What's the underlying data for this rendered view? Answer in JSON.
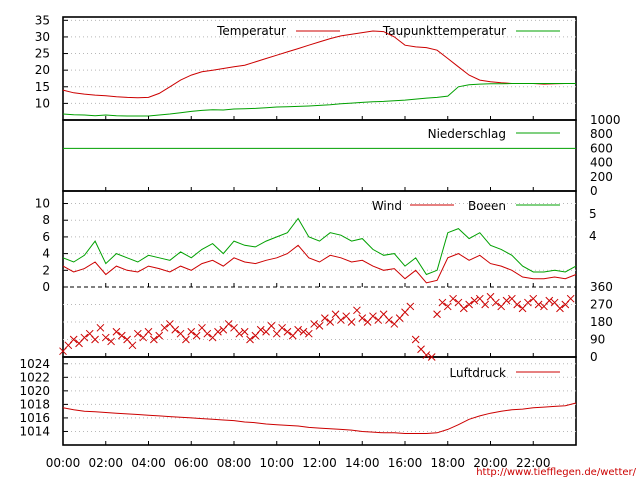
{
  "source_url": "http://www.tiefflegen.de/wetter/",
  "time_ticks": [
    "00:00",
    "02:00",
    "04:00",
    "06:00",
    "08:00",
    "10:00",
    "12:00",
    "14:00",
    "16:00",
    "18:00",
    "20:00",
    "22:00"
  ],
  "colors": {
    "red": "#cc0000",
    "green": "#00a000",
    "frame": "#000000",
    "grid": "#b8b8b8"
  },
  "chart_data": [
    {
      "type": "line",
      "panel": "temperature",
      "x_unit": "hour of day",
      "xlim": [
        0,
        24
      ],
      "ylim": [
        5,
        36
      ],
      "y_ticks": [
        10,
        15,
        20,
        25,
        30,
        35
      ],
      "grid": true,
      "legend_position": "top",
      "series": [
        {
          "name": "Temperatur",
          "color": "#cc0000",
          "x": [
            0,
            0.5,
            1,
            1.5,
            2,
            2.5,
            3,
            3.5,
            4,
            4.5,
            5,
            5.5,
            6,
            6.5,
            7,
            7.5,
            8,
            8.5,
            9,
            9.5,
            10,
            10.5,
            11,
            11.5,
            12,
            12.5,
            13,
            13.5,
            14,
            14.5,
            15,
            15.5,
            16,
            16.5,
            17,
            17.5,
            18,
            18.5,
            19,
            19.5,
            20,
            20.5,
            21,
            21.5,
            22,
            22.5,
            23,
            23.5,
            24
          ],
          "values": [
            14,
            13.2,
            12.8,
            12.5,
            12.3,
            12.0,
            11.8,
            11.7,
            11.8,
            13.0,
            15.0,
            17.0,
            18.5,
            19.5,
            20.0,
            20.5,
            21.0,
            21.5,
            22.5,
            23.5,
            24.5,
            25.5,
            26.5,
            27.5,
            28.5,
            29.5,
            30.3,
            30.8,
            31.3,
            31.8,
            31.6,
            30.0,
            27.5,
            27.0,
            26.8,
            26.0,
            23.5,
            21.0,
            18.5,
            17.0,
            16.5,
            16.2,
            16.0,
            16.0,
            16.0,
            15.8,
            15.9,
            16.0,
            16.0
          ]
        },
        {
          "name": "Taupunkttemperatur",
          "color": "#00a000",
          "x": [
            0,
            0.5,
            1,
            1.5,
            2,
            2.5,
            3,
            3.5,
            4,
            4.5,
            5,
            5.5,
            6,
            6.5,
            7,
            7.5,
            8,
            8.5,
            9,
            9.5,
            10,
            10.5,
            11,
            11.5,
            12,
            12.5,
            13,
            13.5,
            14,
            14.5,
            15,
            15.5,
            16,
            16.5,
            17,
            17.5,
            18,
            18.5,
            19,
            19.5,
            20,
            20.5,
            21,
            21.5,
            22,
            22.5,
            23,
            23.5,
            24
          ],
          "values": [
            6.8,
            6.6,
            6.5,
            6.3,
            6.5,
            6.3,
            6.2,
            6.2,
            6.2,
            6.5,
            6.8,
            7.2,
            7.6,
            7.9,
            8.1,
            8.0,
            8.3,
            8.4,
            8.5,
            8.7,
            8.9,
            9.0,
            9.1,
            9.2,
            9.4,
            9.6,
            9.9,
            10.1,
            10.3,
            10.5,
            10.6,
            10.8,
            11.0,
            11.3,
            11.6,
            11.8,
            12.2,
            15.0,
            15.6,
            15.8,
            15.9,
            15.9,
            16.0,
            16.0,
            16.0,
            16.0,
            16.0,
            16.0,
            16.0
          ]
        }
      ]
    },
    {
      "type": "line",
      "panel": "precipitation",
      "x_unit": "hour of day",
      "xlim": [
        0,
        24
      ],
      "ylim": [
        0,
        1000
      ],
      "y_ticks": [
        0,
        200,
        400,
        600,
        800,
        1000
      ],
      "grid": false,
      "legend_position": "top-right",
      "series": [
        {
          "name": "Niederschlag",
          "color": "#00a000",
          "x": [
            0,
            24
          ],
          "values": [
            600,
            600
          ]
        }
      ]
    },
    {
      "type": "line",
      "panel": "wind",
      "x_unit": "hour of day",
      "xlim": [
        0,
        24
      ],
      "ylim": [
        0,
        11.5
      ],
      "y_ticks": [
        0,
        2,
        4,
        6,
        8,
        10
      ],
      "y_ticks_right": [
        "4",
        "5"
      ],
      "grid": true,
      "legend_position": "top-right",
      "series": [
        {
          "name": "Wind",
          "color": "#cc0000",
          "x": [
            0,
            0.5,
            1,
            1.5,
            2,
            2.5,
            3,
            3.5,
            4,
            4.5,
            5,
            5.5,
            6,
            6.5,
            7,
            7.5,
            8,
            8.5,
            9,
            9.5,
            10,
            10.5,
            11,
            11.5,
            12,
            12.5,
            13,
            13.5,
            14,
            14.5,
            15,
            15.5,
            16,
            16.5,
            17,
            17.5,
            18,
            18.5,
            19,
            19.5,
            20,
            20.5,
            21,
            21.5,
            22,
            22.5,
            23,
            23.5,
            24
          ],
          "values": [
            2.5,
            1.8,
            2.2,
            3.0,
            1.5,
            2.5,
            2.0,
            1.8,
            2.5,
            2.2,
            1.8,
            2.5,
            2.0,
            2.8,
            3.2,
            2.5,
            3.5,
            3.0,
            2.8,
            3.2,
            3.5,
            4.0,
            5.0,
            3.5,
            3.0,
            3.8,
            3.5,
            3.0,
            3.2,
            2.5,
            2.0,
            2.2,
            1.0,
            2.0,
            0.5,
            0.8,
            3.5,
            4.0,
            3.2,
            3.8,
            2.8,
            2.5,
            2.0,
            1.2,
            1.0,
            1.0,
            1.2,
            1.0,
            1.5
          ]
        },
        {
          "name": "Boeen",
          "color": "#00a000",
          "x": [
            0,
            0.5,
            1,
            1.5,
            2,
            2.5,
            3,
            3.5,
            4,
            4.5,
            5,
            5.5,
            6,
            6.5,
            7,
            7.5,
            8,
            8.5,
            9,
            9.5,
            10,
            10.5,
            11,
            11.5,
            12,
            12.5,
            13,
            13.5,
            14,
            14.5,
            15,
            15.5,
            16,
            16.5,
            17,
            17.5,
            18,
            18.5,
            19,
            19.5,
            20,
            20.5,
            21,
            21.5,
            22,
            22.5,
            23,
            23.5,
            24
          ],
          "values": [
            3.5,
            3.0,
            3.8,
            5.5,
            2.8,
            4.0,
            3.5,
            3.0,
            3.8,
            3.5,
            3.2,
            4.2,
            3.5,
            4.5,
            5.2,
            4.0,
            5.5,
            5.0,
            4.8,
            5.5,
            6.0,
            6.5,
            8.2,
            6.0,
            5.5,
            6.5,
            6.2,
            5.5,
            5.8,
            4.5,
            3.8,
            4.0,
            2.5,
            3.5,
            1.5,
            2.0,
            6.5,
            7.0,
            5.8,
            6.5,
            5.0,
            4.5,
            3.8,
            2.5,
            1.8,
            1.8,
            2.0,
            1.8,
            2.5
          ]
        }
      ]
    },
    {
      "type": "scatter",
      "panel": "wind-direction",
      "x_unit": "hour of day",
      "xlim": [
        0,
        24
      ],
      "ylim": [
        0,
        360
      ],
      "y_ticks_right": [
        0,
        90,
        180,
        270,
        360
      ],
      "grid": true,
      "marker": "x",
      "series": [
        {
          "color": "#cc0000",
          "x": [
            0.0,
            0.25,
            0.5,
            0.75,
            1.0,
            1.25,
            1.5,
            1.75,
            2.0,
            2.25,
            2.5,
            2.75,
            3.0,
            3.25,
            3.5,
            3.75,
            4.0,
            4.25,
            4.5,
            4.75,
            5.0,
            5.25,
            5.5,
            5.75,
            6.0,
            6.25,
            6.5,
            6.75,
            7.0,
            7.25,
            7.5,
            7.75,
            8.0,
            8.25,
            8.5,
            8.75,
            9.0,
            9.25,
            9.5,
            9.75,
            10.0,
            10.25,
            10.5,
            10.75,
            11.0,
            11.25,
            11.5,
            11.75,
            12.0,
            12.25,
            12.5,
            12.75,
            13.0,
            13.25,
            13.5,
            13.75,
            14.0,
            14.25,
            14.5,
            14.75,
            15.0,
            15.25,
            15.5,
            15.75,
            16.0,
            16.25,
            16.5,
            16.75,
            17.0,
            17.25,
            17.5,
            17.75,
            18.0,
            18.25,
            18.5,
            18.75,
            19.0,
            19.25,
            19.5,
            19.75,
            20.0,
            20.25,
            20.5,
            20.75,
            21.0,
            21.25,
            21.5,
            21.75,
            22.0,
            22.25,
            22.5,
            22.75,
            23.0,
            23.25,
            23.5,
            23.75
          ],
          "values": [
            30,
            60,
            90,
            70,
            100,
            120,
            90,
            150,
            100,
            80,
            130,
            110,
            90,
            60,
            120,
            100,
            130,
            90,
            110,
            150,
            170,
            140,
            120,
            90,
            130,
            110,
            150,
            120,
            100,
            130,
            140,
            170,
            150,
            120,
            130,
            90,
            110,
            140,
            130,
            160,
            120,
            150,
            130,
            110,
            140,
            130,
            120,
            170,
            160,
            200,
            180,
            220,
            190,
            210,
            180,
            240,
            200,
            180,
            210,
            190,
            220,
            190,
            170,
            200,
            230,
            260,
            90,
            40,
            10,
            0,
            220,
            280,
            260,
            300,
            280,
            250,
            270,
            290,
            300,
            270,
            310,
            280,
            260,
            290,
            300,
            270,
            250,
            280,
            300,
            270,
            260,
            290,
            280,
            250,
            270,
            300
          ]
        }
      ]
    },
    {
      "type": "line",
      "panel": "pressure",
      "x_unit": "hour of day",
      "xlim": [
        0,
        24
      ],
      "ylim": [
        1012,
        1025
      ],
      "y_ticks": [
        1014,
        1016,
        1018,
        1020,
        1022,
        1024
      ],
      "grid": true,
      "legend_position": "top-right",
      "series": [
        {
          "name": "Luftdruck",
          "color": "#cc0000",
          "x": [
            0,
            0.5,
            1,
            1.5,
            2,
            2.5,
            3,
            3.5,
            4,
            4.5,
            5,
            5.5,
            6,
            6.5,
            7,
            7.5,
            8,
            8.5,
            9,
            9.5,
            10,
            10.5,
            11,
            11.5,
            12,
            12.5,
            13,
            13.5,
            14,
            14.5,
            15,
            15.5,
            16,
            16.5,
            17,
            17.5,
            18,
            18.5,
            19,
            19.5,
            20,
            20.5,
            21,
            21.5,
            22,
            22.5,
            23,
            23.5,
            24
          ],
          "values": [
            1017.5,
            1017.2,
            1017.0,
            1016.9,
            1016.8,
            1016.7,
            1016.6,
            1016.5,
            1016.4,
            1016.3,
            1016.2,
            1016.1,
            1016.0,
            1015.9,
            1015.8,
            1015.7,
            1015.6,
            1015.4,
            1015.3,
            1015.1,
            1015.0,
            1014.9,
            1014.8,
            1014.6,
            1014.5,
            1014.4,
            1014.3,
            1014.2,
            1014.0,
            1013.9,
            1013.8,
            1013.8,
            1013.7,
            1013.7,
            1013.7,
            1013.8,
            1014.3,
            1015.0,
            1015.8,
            1016.3,
            1016.7,
            1017.0,
            1017.2,
            1017.3,
            1017.5,
            1017.6,
            1017.7,
            1017.8,
            1018.2
          ]
        }
      ]
    }
  ]
}
